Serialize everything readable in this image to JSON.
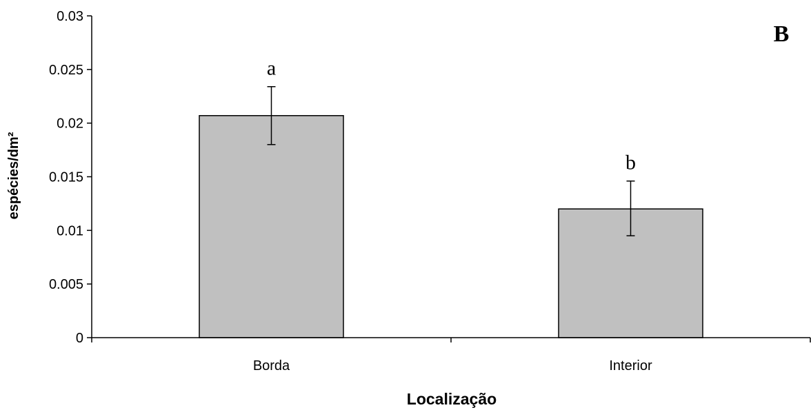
{
  "chart_data": {
    "type": "bar",
    "panel_label": "B",
    "xlabel": "Localização",
    "ylabel": "espécies/dm²",
    "categories": [
      "Borda",
      "Interior"
    ],
    "values": [
      0.0207,
      0.012
    ],
    "error_upper": [
      0.0234,
      0.0146
    ],
    "error_lower": [
      0.018,
      0.0095
    ],
    "significance_labels": [
      "a",
      "b"
    ],
    "ylim": [
      0,
      0.03
    ],
    "yticks": [
      0,
      0.005,
      0.01,
      0.015,
      0.02,
      0.025,
      0.03
    ],
    "ytick_labels": [
      "0",
      "0.005",
      "0.01",
      "0.015",
      "0.02",
      "0.025",
      "0.03"
    ],
    "grid": false,
    "legend": "none",
    "colors": {
      "bar_fill": "#c0c0c0",
      "bar_stroke": "#000000",
      "axis": "#000000"
    }
  }
}
